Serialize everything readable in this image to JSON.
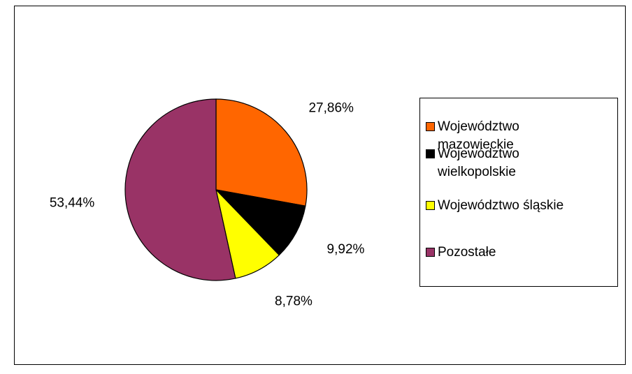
{
  "chart_data": {
    "type": "pie",
    "categories": [
      "Województwo mazowieckie",
      "Województwo wielkopolskie",
      "Województwo śląskie",
      "Pozostałe"
    ],
    "values": [
      27.86,
      9.92,
      8.78,
      53.44
    ],
    "value_labels": [
      "27,86%",
      "9,92%",
      "8,78%",
      "53,44%"
    ],
    "colors": [
      "#ff6600",
      "#000000",
      "#ffff00",
      "#993366"
    ],
    "legend": "right"
  }
}
